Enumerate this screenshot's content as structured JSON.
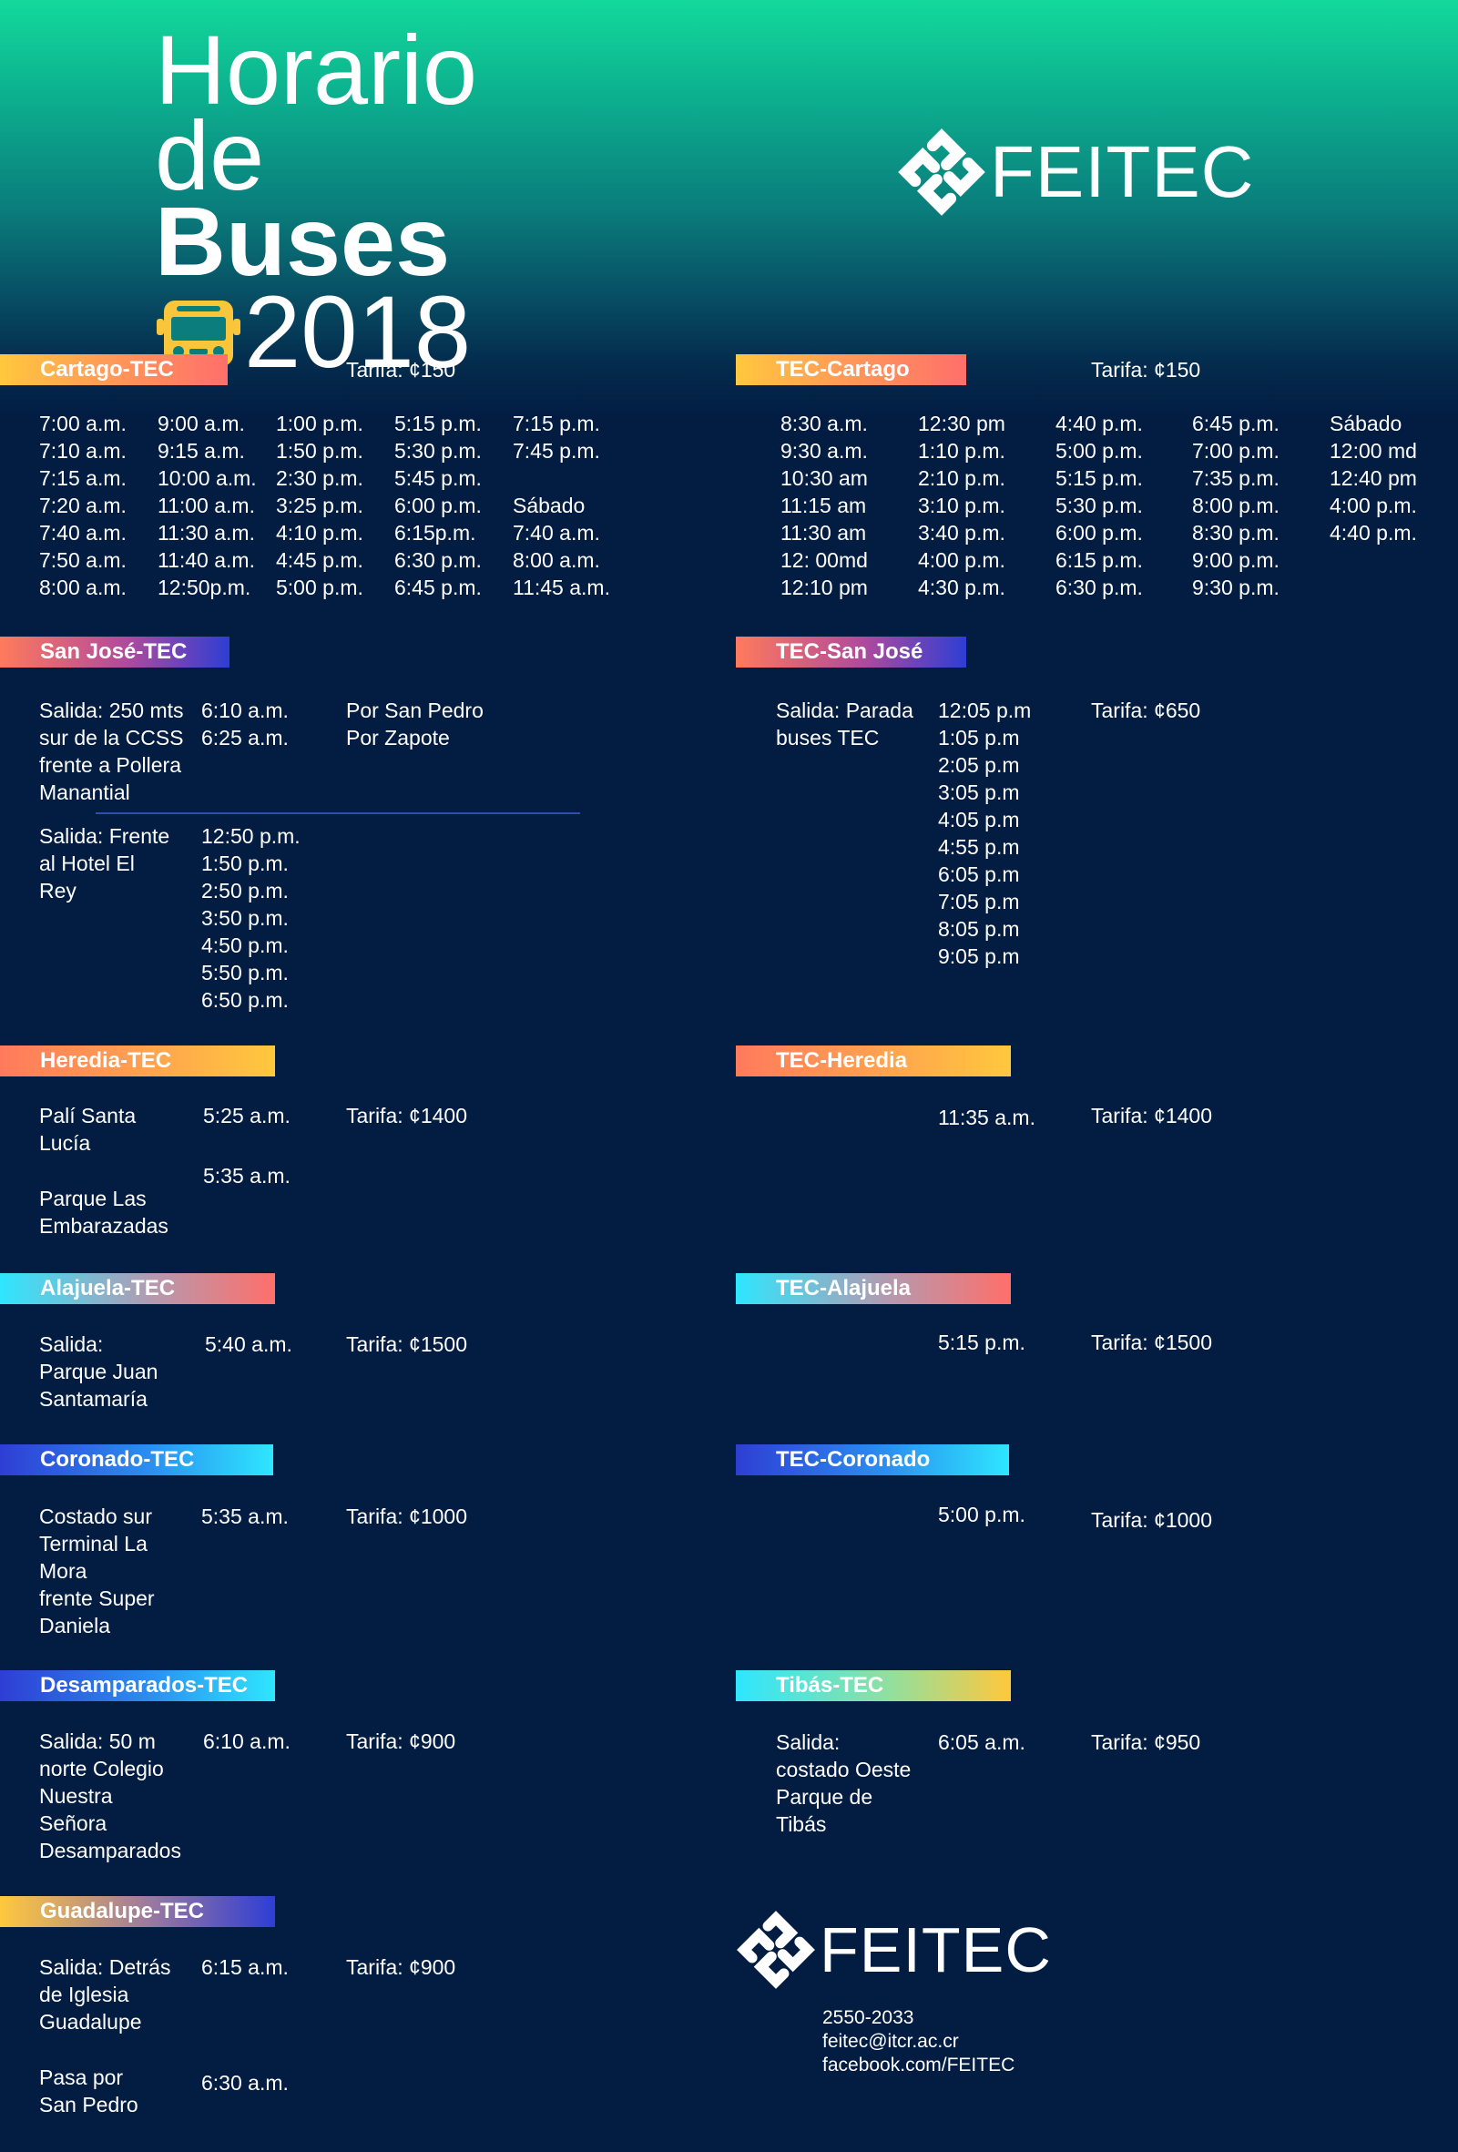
{
  "header": {
    "title_line1": "Horario",
    "title_line2_prefix": "de",
    "title_line2_bold": "Buses",
    "year": "2018",
    "logo_text": "FEITEC"
  },
  "colors": {
    "background_top": "#13d99b",
    "background_main": "#021c42",
    "accent_orange": "#ff7a5c",
    "accent_yellow": "#ffc83d",
    "accent_cyan": "#2ee6ff",
    "accent_blue": "#2e3ed4",
    "bus_icon": "#f9c53b"
  },
  "routes": {
    "cartago_tec": {
      "title": "Cartago-TEC",
      "fare": "Tarifa: ¢150",
      "columns": [
        [
          "7:00 a.m.",
          "7:10 a.m.",
          "7:15 a.m.",
          "7:20 a.m.",
          "7:40 a.m.",
          "7:50 a.m.",
          "8:00 a.m."
        ],
        [
          "9:00 a.m.",
          "9:15 a.m.",
          "10:00 a.m.",
          "11:00 a.m.",
          "11:30 a.m.",
          "11:40 a.m.",
          "12:50p.m."
        ],
        [
          "1:00 p.m.",
          "1:50 p.m.",
          "2:30 p.m.",
          "3:25 p.m.",
          "4:10 p.m.",
          "4:45 p.m.",
          "5:00 p.m."
        ],
        [
          "5:15 p.m.",
          "5:30 p.m.",
          "5:45 p.m.",
          "6:00 p.m.",
          "6:15p.m.",
          "6:30 p.m.",
          "6:45 p.m."
        ],
        [
          "7:15 p.m.",
          "7:45 p.m.",
          "",
          "Sábado",
          "7:40 a.m.",
          "8:00 a.m.",
          "11:45 a.m."
        ]
      ]
    },
    "tec_cartago": {
      "title": "TEC-Cartago",
      "fare": "Tarifa: ¢150",
      "columns": [
        [
          "8:30 a.m.",
          "9:30 a.m.",
          "10:30 am",
          "11:15 am",
          "11:30 am",
          "12: 00md",
          "12:10 pm"
        ],
        [
          "12:30 pm",
          "1:10 p.m.",
          "2:10 p.m.",
          "3:10 p.m.",
          "3:40 p.m.",
          "4:00 p.m.",
          "4:30 p.m."
        ],
        [
          "4:40 p.m.",
          "5:00 p.m.",
          "5:15 p.m.",
          "5:30 p.m.",
          "6:00 p.m.",
          "6:15 p.m.",
          "6:30 p.m."
        ],
        [
          "6:45 p.m.",
          "7:00 p.m.",
          "7:35 p.m.",
          "8:00 p.m.",
          "8:30 p.m.",
          "9:00 p.m.",
          "9:30 p.m."
        ],
        [
          "Sábado",
          "12:00 md",
          "12:40 pm",
          "4:00 p.m.",
          "4:40 p.m."
        ]
      ]
    },
    "sanjose_tec": {
      "title": "San José-TEC",
      "stop1": "Salida: 250 mts\nsur de la CCSS\nfrente a Pollera\nManantial",
      "stop1_times": [
        "6:10 a.m.",
        "6:25 a.m."
      ],
      "stop1_via": [
        "Por San Pedro",
        "Por Zapote"
      ],
      "stop2": "Salida: Frente\nal Hotel El\nRey",
      "stop2_times": [
        "12:50 p.m.",
        "1:50 p.m.",
        "2:50 p.m.",
        "3:50 p.m.",
        "4:50 p.m.",
        "5:50 p.m.",
        "6:50 p.m."
      ]
    },
    "tec_sanjose": {
      "title": "TEC-San José",
      "stop": "Salida: Parada\nbuses TEC",
      "times": [
        "12:05 p.m",
        "1:05 p.m",
        "2:05 p.m",
        "3:05 p.m",
        "4:05 p.m",
        "4:55 p.m",
        "6:05 p.m",
        "7:05 p.m",
        "8:05 p.m",
        "9:05 p.m"
      ],
      "fare": "Tarifa: ¢650"
    },
    "heredia_tec": {
      "title": "Heredia-TEC",
      "stop1": "Palí Santa\nLucía",
      "time1": "5:25 a.m.",
      "stop2": "Parque Las\nEmbarazadas",
      "time2": "5:35 a.m.",
      "fare": "Tarifa: ¢1400"
    },
    "tec_heredia": {
      "title": "TEC-Heredia",
      "time": "11:35 a.m.",
      "fare": "Tarifa: ¢1400"
    },
    "alajuela_tec": {
      "title": "Alajuela-TEC",
      "stop": "Salida:\nParque Juan\nSantamaría",
      "time": "5:40 a.m.",
      "fare": "Tarifa: ¢1500"
    },
    "tec_alajuela": {
      "title": "TEC-Alajuela",
      "time": "5:15 p.m.",
      "fare": "Tarifa: ¢1500"
    },
    "coronado_tec": {
      "title": "Coronado-TEC",
      "stop": "Costado sur\nTerminal La\nMora\nfrente Super\nDaniela",
      "time": "5:35 a.m.",
      "fare": "Tarifa: ¢1000"
    },
    "tec_coronado": {
      "title": "TEC-Coronado",
      "time": "5:00 p.m.",
      "fare": "Tarifa: ¢1000"
    },
    "desamparados_tec": {
      "title": "Desamparados-TEC",
      "stop": "Salida: 50 m\nnorte Colegio\nNuestra\nSeñora\nDesamparados",
      "time": "6:10 a.m.",
      "fare": "Tarifa: ¢900"
    },
    "tibas_tec": {
      "title": "Tibás-TEC",
      "stop": "Salida:\ncostado Oeste\nParque de\nTibás",
      "time": "6:05 a.m.",
      "fare": "Tarifa: ¢950"
    },
    "guadalupe_tec": {
      "title": "Guadalupe-TEC",
      "stop1": "Salida: Detrás\nde Iglesia\nGuadalupe",
      "time1": "6:15 a.m.",
      "fare": "Tarifa: ¢900",
      "stop2": "Pasa por\nSan Pedro",
      "time2": "6:30 a.m."
    }
  },
  "footer": {
    "logo_text": "FEITEC",
    "phone": "2550-2033",
    "email": "feitec@itcr.ac.cr",
    "facebook": "facebook.com/FEITEC"
  }
}
